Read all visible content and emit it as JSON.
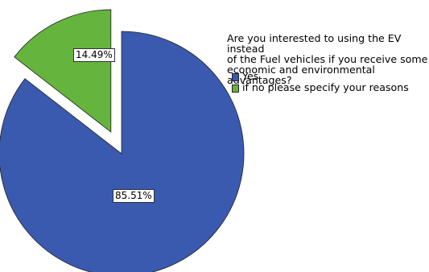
{
  "chart_data": {
    "type": "pie",
    "legend_title": "Are you interested to using the EV instead of the Fuel vehicles if you receive some economic and environmental advantages?",
    "legend_title_lines": [
      "Are you interested to using the EV instead",
      "of the Fuel vehicles if you receive some",
      "economic and environmental advantages?"
    ],
    "legend_position": "right",
    "slices": [
      {
        "label": "Yes",
        "value": 85.51,
        "display": "85.51%",
        "color": "#3a5aaf",
        "exploded": false
      },
      {
        "label": "if no please specify your reasons",
        "value": 14.49,
        "display": "14.49%",
        "color": "#64b43e",
        "exploded": true
      }
    ]
  }
}
